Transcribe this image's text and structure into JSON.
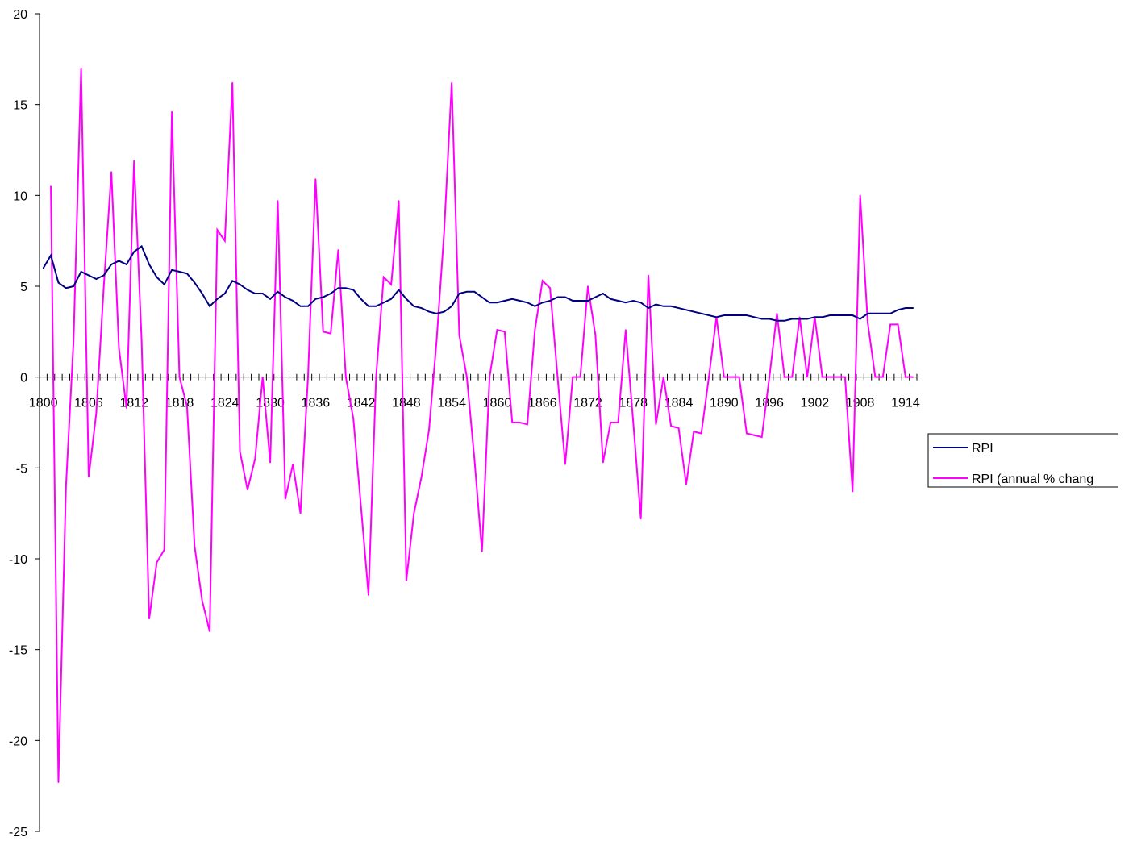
{
  "chart_data": {
    "type": "line",
    "ylim": [
      -25,
      20
    ],
    "yticks": [
      -25,
      -20,
      -15,
      -10,
      -5,
      0,
      5,
      10,
      15,
      20
    ],
    "ytick_labels": [
      "-25",
      "-20",
      "-15",
      "-10",
      "-5",
      "0",
      "5",
      "10",
      "15",
      "20"
    ],
    "x_start": 1800,
    "xticks": [
      1800,
      1806,
      1812,
      1818,
      1824,
      1830,
      1836,
      1842,
      1848,
      1854,
      1860,
      1866,
      1872,
      1878,
      1884,
      1890,
      1896,
      1902,
      1908,
      1914
    ],
    "xtick_labels": [
      "1800",
      "1806",
      "1812",
      "1818",
      "1824",
      "1830",
      "1836",
      "1842",
      "1848",
      "1854",
      "1860",
      "1866",
      "1872",
      "1878",
      "1884",
      "1890",
      "1896",
      "1902",
      "1908",
      "1914"
    ],
    "grid": false,
    "legend_position": "right",
    "series": [
      {
        "name": "RPI",
        "color": "#000080",
        "values": [
          6.0,
          6.7,
          5.2,
          4.9,
          5.0,
          5.8,
          5.6,
          5.4,
          5.6,
          6.2,
          6.4,
          6.2,
          6.9,
          7.2,
          6.2,
          5.5,
          5.1,
          5.9,
          5.8,
          5.7,
          5.2,
          4.6,
          3.9,
          4.3,
          4.6,
          5.3,
          5.1,
          4.8,
          4.6,
          4.6,
          4.3,
          4.7,
          4.4,
          4.2,
          3.9,
          3.9,
          4.3,
          4.4,
          4.6,
          4.9,
          4.9,
          4.8,
          4.3,
          3.9,
          3.9,
          4.1,
          4.3,
          4.8,
          4.3,
          3.9,
          3.8,
          3.6,
          3.5,
          3.6,
          3.9,
          4.6,
          4.7,
          4.7,
          4.4,
          4.1,
          4.1,
          4.2,
          4.3,
          4.2,
          4.1,
          3.9,
          4.1,
          4.2,
          4.4,
          4.4,
          4.2,
          4.2,
          4.2,
          4.4,
          4.6,
          4.3,
          4.2,
          4.1,
          4.2,
          4.1,
          3.8,
          4.0,
          3.9,
          3.9,
          3.8,
          3.7,
          3.6,
          3.5,
          3.4,
          3.3,
          3.4,
          3.4,
          3.4,
          3.4,
          3.3,
          3.2,
          3.2,
          3.1,
          3.1,
          3.2,
          3.2,
          3.2,
          3.3,
          3.3,
          3.4,
          3.4,
          3.4,
          3.4,
          3.2,
          3.5,
          3.5,
          3.5,
          3.5,
          3.7,
          3.8,
          3.8
        ]
      },
      {
        "name": "RPI  (annual % chang",
        "color": "#ff00ff",
        "values": [
          null,
          10.5,
          -22.3,
          -6.0,
          2.0,
          17.0,
          -5.5,
          -2.0,
          5.0,
          11.3,
          1.6,
          -1.7,
          11.9,
          2.0,
          -13.3,
          -10.2,
          -9.5,
          14.6,
          0.0,
          -1.6,
          -9.3,
          -12.3,
          -14.0,
          8.1,
          7.5,
          16.2,
          -4.1,
          -6.2,
          -4.5,
          0.0,
          -4.7,
          9.7,
          -6.7,
          -4.8,
          -7.5,
          0.0,
          10.9,
          2.5,
          2.4,
          7.0,
          0.0,
          -2.3,
          -7.1,
          -12.0,
          0.0,
          5.5,
          5.1,
          9.7,
          -11.2,
          -7.5,
          -5.5,
          -2.9,
          2.0,
          8.0,
          16.2,
          2.3,
          0.0,
          -4.5,
          -9.6,
          0.0,
          2.6,
          2.5,
          -2.5,
          -2.5,
          -2.6,
          2.6,
          5.3,
          4.9,
          0.0,
          -4.8,
          0.0,
          0.0,
          5.0,
          2.3,
          -4.7,
          -2.5,
          -2.5,
          2.6,
          -2.5,
          -7.8,
          5.6,
          -2.6,
          0.0,
          -2.7,
          -2.8,
          -5.9,
          -3.0,
          -3.1,
          0.0,
          3.3,
          0.0,
          0.0,
          0.0,
          -3.1,
          -3.2,
          -3.3,
          0.0,
          3.5,
          0.0,
          0.0,
          3.3,
          0.0,
          3.3,
          0.0,
          0.0,
          0.0,
          0.0,
          -6.3,
          10.0,
          3.0,
          0.0,
          0.0,
          2.9,
          2.9,
          0.0,
          0.0
        ]
      }
    ]
  }
}
